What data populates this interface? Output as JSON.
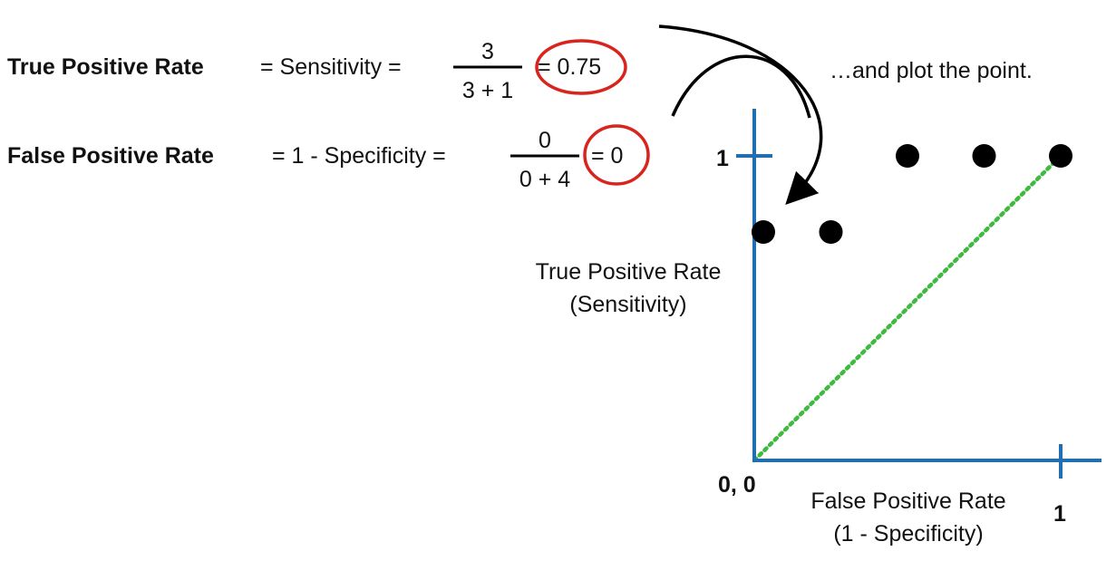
{
  "equations": {
    "tpr": {
      "label": "True Positive Rate",
      "equals_name": "= Sensitivity =",
      "numerator": "3",
      "denominator": "3 + 1",
      "result": "= 0.75"
    },
    "fpr": {
      "label": "False Positive Rate",
      "equals_name": "= 1 - Specificity =",
      "numerator": "0",
      "denominator": "0 + 4",
      "result": "= 0"
    }
  },
  "annotation": "…and plot the point.",
  "highlight_color": "#d9231d",
  "chart_data": {
    "type": "scatter",
    "title": "",
    "ylabel_line1": "True Positive Rate",
    "ylabel_line2": "(Sensitivity)",
    "xlabel_line1": "False Positive Rate",
    "xlabel_line2": "(1 - Specificity)",
    "origin_label": "0, 0",
    "x_tick_label": "1",
    "y_tick_label": "1",
    "xlim": [
      0,
      1
    ],
    "ylim": [
      0,
      1
    ],
    "axis_color": "#1f6fb2",
    "point_color": "#000000",
    "reference_line": {
      "from": [
        0,
        0
      ],
      "to": [
        1,
        1
      ],
      "color": "#3fb93f",
      "style": "dotted"
    },
    "points": [
      {
        "x": 0,
        "y": 0.75
      },
      {
        "x": 0.25,
        "y": 0.75
      },
      {
        "x": 0.5,
        "y": 1
      },
      {
        "x": 0.75,
        "y": 1
      },
      {
        "x": 1,
        "y": 1
      }
    ]
  }
}
